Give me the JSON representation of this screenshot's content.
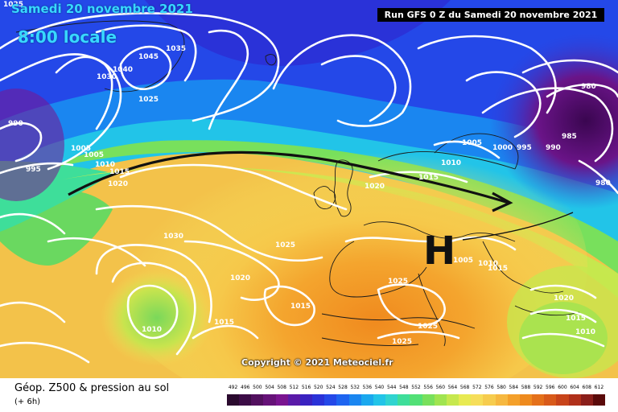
{
  "header": {
    "date": "Samedi 20 novembre 2021",
    "local_time": "8:00 locale",
    "run": "Run GFS 0 Z du Samedi 20 novembre 2021"
  },
  "map": {
    "copyright": "Copyright © 2021 Meteociel.fr",
    "high_marker": "H",
    "pressure_labels": [
      "1025",
      "1045",
      "1035",
      "1040",
      "1030",
      "1025",
      "990",
      "1005",
      "1005",
      "1010",
      "1015",
      "995",
      "1020",
      "1030",
      "1025",
      "1020",
      "1015",
      "1010",
      "1015",
      "1025",
      "1025",
      "1025",
      "1020",
      "1015",
      "1010",
      "1005",
      "1000",
      "995",
      "990",
      "985",
      "980",
      "980",
      "1005",
      "1010",
      "1015",
      "1020",
      "1015",
      "1010"
    ],
    "colors": {
      "deep_purple": "#5a0a7a",
      "blue": "#1a3fd8",
      "cyan": "#22c4e8",
      "green": "#6ad860",
      "yellow": "#f4e05a",
      "orange": "#f4a02a",
      "contour": "#ffffff",
      "track_arrow": "#111111"
    }
  },
  "legend": {
    "title": "Géop. Z500 & pression au sol",
    "offset": "(+ 6h)",
    "values": [
      "492",
      "496",
      "500",
      "504",
      "508",
      "512",
      "516",
      "520",
      "524",
      "528",
      "532",
      "536",
      "540",
      "544",
      "548",
      "552",
      "556",
      "560",
      "564",
      "568",
      "572",
      "576",
      "580",
      "584",
      "588",
      "592",
      "596",
      "600",
      "604",
      "608",
      "612"
    ],
    "colors": [
      "#2a0a2e",
      "#3c0c46",
      "#52105e",
      "#661278",
      "#7a1490",
      "#5a1aa8",
      "#3a22c0",
      "#2a32d8",
      "#2448e8",
      "#1e64f0",
      "#1a86f0",
      "#1aa8ee",
      "#22c4e8",
      "#30d4d0",
      "#3ede9a",
      "#52e076",
      "#78e05c",
      "#a0e450",
      "#c6e84e",
      "#e8ea52",
      "#f6de5a",
      "#f6cc4e",
      "#f6b840",
      "#f4a02a",
      "#ee8a1e",
      "#e4701a",
      "#d85a1a",
      "#c8441a",
      "#b0301a",
      "#8a1e1a",
      "#5a0a0a"
    ]
  }
}
